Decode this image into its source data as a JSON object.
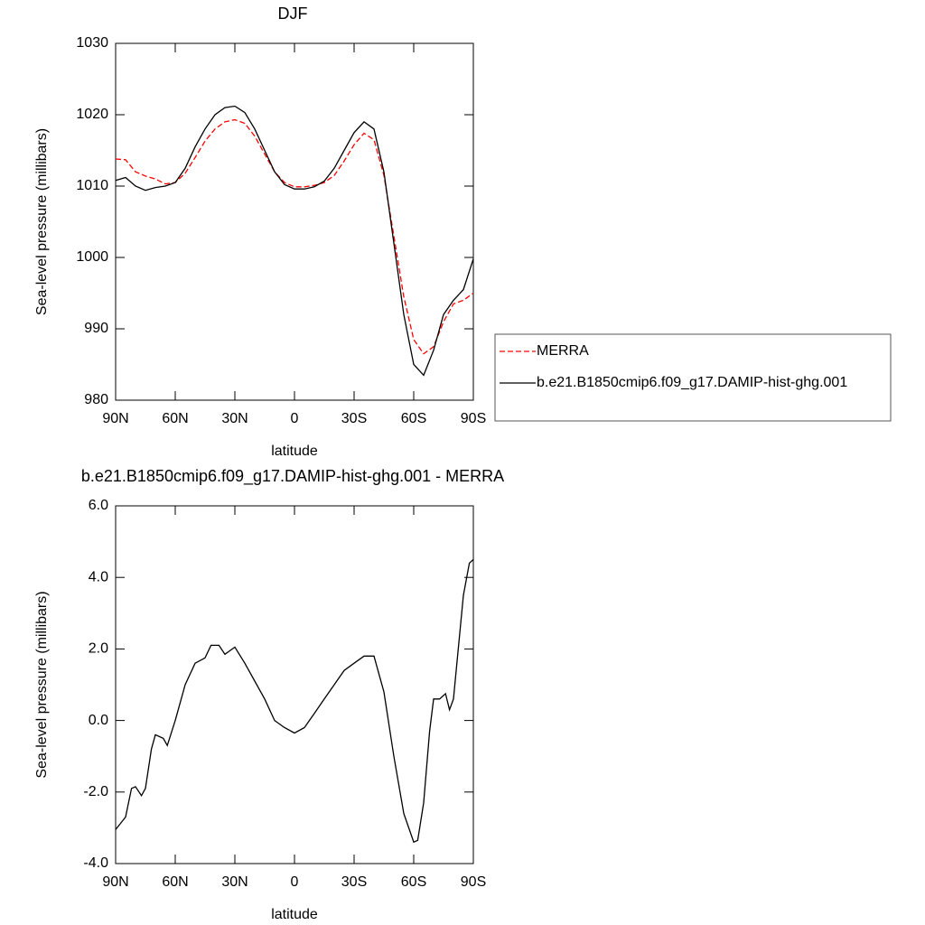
{
  "chart_data": [
    {
      "type": "line",
      "title": "DJF",
      "xlabel": "latitude",
      "ylabel": "Sea-level pressure (millibars)",
      "x": [
        90,
        85,
        80,
        75,
        70,
        65,
        60,
        55,
        50,
        45,
        40,
        35,
        30,
        25,
        20,
        15,
        10,
        5,
        0,
        -5,
        -10,
        -15,
        -20,
        -25,
        -30,
        -35,
        -40,
        -45,
        -50,
        -55,
        -60,
        -65,
        -70,
        -75,
        -80,
        -85,
        -90
      ],
      "xlim": [
        90,
        -90
      ],
      "xticks": [
        {
          "value": 90,
          "label": "90N"
        },
        {
          "value": 60,
          "label": "60N"
        },
        {
          "value": 30,
          "label": "30N"
        },
        0,
        {
          "value": -30,
          "label": "30S"
        },
        {
          "value": -60,
          "label": "60S"
        },
        {
          "value": -90,
          "label": "90S"
        }
      ],
      "ylim": [
        980,
        1030
      ],
      "yticks": [
        980,
        990,
        1000,
        1010,
        1020,
        1030
      ],
      "legend": "right",
      "series": [
        {
          "name": "MERRA",
          "color": "#ff0000",
          "line_style": "dashed",
          "values": [
            1013.8,
            1013.7,
            1012,
            1011.4,
            1011,
            1010.3,
            1010.5,
            1011.8,
            1014,
            1016.3,
            1018,
            1019,
            1019.3,
            1018.8,
            1017,
            1014.5,
            1012,
            1010.5,
            1009.9,
            1009.9,
            1010.1,
            1010.5,
            1011.5,
            1013.5,
            1015.8,
            1017.4,
            1016.5,
            1011.5,
            1003,
            994.5,
            988.5,
            986.5,
            987.5,
            991,
            993.5,
            994,
            995
          ]
        },
        {
          "name": "b.e21.B1850cmip6.f09_g17.DAMIP-hist-ghg.001",
          "color": "#000000",
          "line_style": "solid",
          "values": [
            1010.8,
            1011.2,
            1010,
            1009.4,
            1009.8,
            1010,
            1010.5,
            1012.5,
            1015.5,
            1018,
            1020,
            1021,
            1021.2,
            1020.3,
            1018,
            1015,
            1012,
            1010.2,
            1009.6,
            1009.6,
            1009.9,
            1010.7,
            1012.5,
            1015,
            1017.5,
            1019,
            1018,
            1012,
            1002,
            992,
            985,
            983.5,
            987,
            992,
            994,
            995.5,
            999.8
          ]
        }
      ]
    },
    {
      "type": "line",
      "title": "b.e21.B1850cmip6.f09_g17.DAMIP-hist-ghg.001 - MERRA",
      "xlabel": "latitude",
      "ylabel": "Sea-level pressure (millibars)",
      "x": [
        90,
        85,
        82,
        80,
        77,
        75,
        72,
        70,
        66,
        64,
        60,
        55,
        50,
        45,
        42,
        38,
        35,
        30,
        25,
        20,
        15,
        10,
        5,
        0,
        -5,
        -10,
        -15,
        -20,
        -25,
        -30,
        -35,
        -40,
        -45,
        -50,
        -55,
        -60,
        -62,
        -65,
        -68,
        -70,
        -73,
        -76,
        -78,
        -80,
        -85,
        -88,
        -90
      ],
      "xlim": [
        90,
        -90
      ],
      "xticks": [
        {
          "value": 90,
          "label": "90N"
        },
        {
          "value": 60,
          "label": "60N"
        },
        {
          "value": 30,
          "label": "30N"
        },
        0,
        {
          "value": -30,
          "label": "30S"
        },
        {
          "value": -60,
          "label": "60S"
        },
        {
          "value": -90,
          "label": "90S"
        }
      ],
      "ylim": [
        -4,
        6
      ],
      "yticks": [
        {
          "value": -4,
          "label": "-4.0"
        },
        {
          "value": -2,
          "label": "-2.0"
        },
        {
          "value": 0,
          "label": "0.0"
        },
        {
          "value": 2,
          "label": "2.0"
        },
        {
          "value": 4,
          "label": "4.0"
        },
        {
          "value": 6,
          "label": "6.0"
        }
      ],
      "series": [
        {
          "color": "#000000",
          "line_style": "solid",
          "values": [
            -3.05,
            -2.7,
            -1.9,
            -1.85,
            -2.1,
            -1.9,
            -0.8,
            -0.4,
            -0.5,
            -0.7,
            0,
            1,
            1.6,
            1.75,
            2.1,
            2.1,
            1.85,
            2.05,
            1.6,
            1.1,
            0.6,
            0,
            -0.2,
            -0.35,
            -0.2,
            0.2,
            0.6,
            1,
            1.4,
            1.6,
            1.8,
            1.8,
            0.8,
            -1,
            -2.6,
            -3.4,
            -3.35,
            -2.3,
            -0.3,
            0.6,
            0.6,
            0.75,
            0.3,
            0.6,
            3.5,
            4.4,
            4.5
          ]
        }
      ]
    }
  ]
}
